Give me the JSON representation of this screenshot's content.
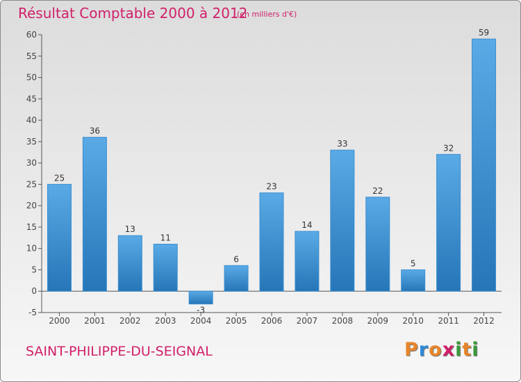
{
  "header": {
    "title": "Résultat Comptable 2000 à 2012",
    "subtitle": "(en milliers d'€)"
  },
  "footer": {
    "commune": "SAINT-PHILIPPE-DU-SEIGNAL",
    "logo": "Proxiti"
  },
  "colors": {
    "title": "#d0206a",
    "bar_light": "#5aaae6",
    "bar_dark": "#2676b8",
    "axis": "#555555"
  },
  "chart_data": {
    "type": "bar",
    "title": "Résultat Comptable 2000 à 2012",
    "subtitle": "(en milliers d'€)",
    "categories": [
      "2000",
      "2001",
      "2002",
      "2003",
      "2004",
      "2005",
      "2006",
      "2007",
      "2008",
      "2009",
      "2010",
      "2011",
      "2012"
    ],
    "values": [
      25,
      36,
      13,
      11,
      -3,
      6,
      23,
      14,
      33,
      22,
      5,
      32,
      59
    ],
    "ylim": [
      -5,
      60
    ],
    "yticks": [
      -5,
      0,
      5,
      10,
      15,
      20,
      25,
      30,
      35,
      40,
      45,
      50,
      55,
      60
    ],
    "grid": false,
    "data_labels": true
  }
}
